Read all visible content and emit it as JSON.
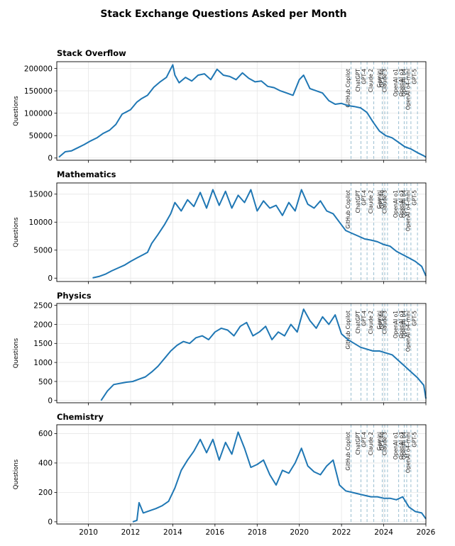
{
  "chart_data": {
    "type": "line",
    "title": "Stack Exchange Questions Asked per Month",
    "xlim": [
      2008.5,
      2026.0
    ],
    "xticks": [
      2010,
      2012,
      2014,
      2016,
      2018,
      2020,
      2022,
      2024,
      2026
    ],
    "xtick_labels": [
      "2010",
      "2012",
      "2014",
      "2016",
      "2018",
      "2020",
      "2022",
      "2024",
      "2026"
    ],
    "events": [
      {
        "label": "GitHub Copilot",
        "x": 2022.45
      },
      {
        "label": "ChatGPT",
        "x": 2022.92
      },
      {
        "label": "GPT-4",
        "x": 2023.21
      },
      {
        "label": "Claude 2",
        "x": 2023.53
      },
      {
        "label": "Gemini",
        "x": 2023.93
      },
      {
        "label": "GPT-4o",
        "x": 2024.05
      },
      {
        "label": "Claude 3",
        "x": 2024.18
      },
      {
        "label": "OpenAI o1",
        "x": 2024.71
      },
      {
        "label": "OpenAI o3",
        "x": 2024.97
      },
      {
        "label": "OpenAI o4",
        "x": 2025.09
      },
      {
        "label": "OpenAI o4-mini",
        "x": 2025.29
      },
      {
        "label": "GPT-5",
        "x": 2025.6
      }
    ],
    "panels": [
      {
        "name": "Stack Overflow",
        "ylabel": "Questions",
        "ylim": [
          -5000,
          215000
        ],
        "yticks": [
          0,
          50000,
          100000,
          150000,
          200000
        ],
        "ytick_labels": [
          "0",
          "50000",
          "100000",
          "150000",
          "200000"
        ],
        "x": [
          2008.6,
          2008.9,
          2009.2,
          2009.5,
          2009.8,
          2010.1,
          2010.4,
          2010.7,
          2011.0,
          2011.3,
          2011.6,
          2011.8,
          2012.0,
          2012.3,
          2012.5,
          2012.8,
          2013.1,
          2013.4,
          2013.7,
          2014.0,
          2014.1,
          2014.3,
          2014.6,
          2014.9,
          2015.2,
          2015.5,
          2015.8,
          2016.1,
          2016.4,
          2016.7,
          2017.0,
          2017.3,
          2017.6,
          2017.9,
          2018.2,
          2018.5,
          2018.8,
          2019.1,
          2019.4,
          2019.7,
          2020.0,
          2020.2,
          2020.5,
          2020.8,
          2021.1,
          2021.4,
          2021.7,
          2022.0,
          2022.3,
          2022.6,
          2022.9,
          2023.2,
          2023.5,
          2023.8,
          2024.1,
          2024.4,
          2024.7,
          2025.0,
          2025.3,
          2025.6,
          2025.9,
          2026.0
        ],
        "y": [
          2000,
          14000,
          16000,
          23000,
          30000,
          38000,
          45000,
          55000,
          62000,
          75000,
          98000,
          103000,
          108000,
          125000,
          132000,
          140000,
          158000,
          170000,
          180000,
          208000,
          185000,
          168000,
          180000,
          172000,
          185000,
          188000,
          175000,
          198000,
          185000,
          182000,
          175000,
          190000,
          178000,
          170000,
          172000,
          160000,
          157000,
          150000,
          145000,
          140000,
          175000,
          185000,
          155000,
          150000,
          145000,
          128000,
          120000,
          122000,
          117000,
          115000,
          112000,
          102000,
          80000,
          60000,
          50000,
          45000,
          35000,
          25000,
          20000,
          12000,
          5000,
          2000
        ]
      },
      {
        "name": "Mathematics",
        "ylabel": "Questions",
        "ylim": [
          -600,
          17000
        ],
        "yticks": [
          0,
          5000,
          10000,
          15000
        ],
        "ytick_labels": [
          "0",
          "5000",
          "10000",
          "15000"
        ],
        "x": [
          2010.2,
          2010.5,
          2010.8,
          2011.1,
          2011.4,
          2011.7,
          2012.0,
          2012.3,
          2012.6,
          2012.8,
          2013.0,
          2013.3,
          2013.6,
          2013.9,
          2014.1,
          2014.4,
          2014.7,
          2015.0,
          2015.3,
          2015.6,
          2015.9,
          2016.2,
          2016.5,
          2016.8,
          2017.1,
          2017.4,
          2017.7,
          2018.0,
          2018.3,
          2018.6,
          2018.9,
          2019.2,
          2019.5,
          2019.8,
          2020.1,
          2020.4,
          2020.7,
          2021.0,
          2021.3,
          2021.6,
          2021.9,
          2022.2,
          2022.5,
          2022.8,
          2023.1,
          2023.4,
          2023.7,
          2024.0,
          2024.3,
          2024.6,
          2024.9,
          2025.2,
          2025.5,
          2025.8,
          2026.0
        ],
        "y": [
          50,
          300,
          700,
          1300,
          1800,
          2300,
          3000,
          3600,
          4200,
          4600,
          6200,
          7800,
          9500,
          11500,
          13500,
          12000,
          14000,
          12800,
          15300,
          12500,
          15800,
          13000,
          15500,
          12500,
          14800,
          13500,
          15800,
          12000,
          13800,
          12500,
          13000,
          11200,
          13500,
          12000,
          15800,
          13200,
          12500,
          13800,
          12000,
          11500,
          10000,
          8500,
          8000,
          7500,
          7000,
          6800,
          6500,
          6000,
          5700,
          4800,
          4200,
          3600,
          3000,
          2100,
          400
        ]
      },
      {
        "name": "Physics",
        "ylabel": "Questions",
        "ylim": [
          -60,
          2550
        ],
        "yticks": [
          0,
          500,
          1000,
          1500,
          2000,
          2500
        ],
        "ytick_labels": [
          "0",
          "500",
          "1000",
          "1500",
          "2000",
          "2500"
        ],
        "x": [
          2010.6,
          2010.9,
          2011.2,
          2011.5,
          2011.8,
          2012.1,
          2012.4,
          2012.7,
          2013.0,
          2013.3,
          2013.6,
          2013.9,
          2014.2,
          2014.5,
          2014.8,
          2015.1,
          2015.4,
          2015.7,
          2016.0,
          2016.3,
          2016.6,
          2016.9,
          2017.2,
          2017.5,
          2017.8,
          2018.1,
          2018.4,
          2018.7,
          2019.0,
          2019.3,
          2019.6,
          2019.9,
          2020.2,
          2020.5,
          2020.8,
          2021.1,
          2021.4,
          2021.7,
          2022.0,
          2022.3,
          2022.6,
          2022.9,
          2023.2,
          2023.5,
          2023.8,
          2024.1,
          2024.4,
          2024.7,
          2025.0,
          2025.3,
          2025.6,
          2025.9,
          2026.0
        ],
        "y": [
          0,
          250,
          420,
          450,
          480,
          500,
          560,
          620,
          750,
          900,
          1100,
          1300,
          1450,
          1550,
          1500,
          1650,
          1700,
          1600,
          1800,
          1900,
          1850,
          1700,
          1950,
          2050,
          1700,
          1800,
          1950,
          1600,
          1800,
          1700,
          2000,
          1800,
          2400,
          2100,
          1900,
          2200,
          2000,
          2250,
          1750,
          1600,
          1500,
          1400,
          1350,
          1300,
          1300,
          1250,
          1200,
          1050,
          900,
          750,
          600,
          400,
          50
        ]
      },
      {
        "name": "Chemistry",
        "ylabel": "Questions",
        "ylim": [
          -15,
          660
        ],
        "yticks": [
          0,
          200,
          400,
          600
        ],
        "ytick_labels": [
          "0",
          "200",
          "400",
          "600"
        ],
        "x": [
          2012.1,
          2012.3,
          2012.4,
          2012.6,
          2012.9,
          2013.2,
          2013.5,
          2013.8,
          2014.1,
          2014.4,
          2014.7,
          2015.0,
          2015.3,
          2015.6,
          2015.9,
          2016.2,
          2016.5,
          2016.8,
          2017.1,
          2017.4,
          2017.7,
          2018.0,
          2018.3,
          2018.6,
          2018.9,
          2019.2,
          2019.5,
          2019.8,
          2020.1,
          2020.4,
          2020.7,
          2021.0,
          2021.3,
          2021.6,
          2021.9,
          2022.2,
          2022.5,
          2022.8,
          2023.1,
          2023.4,
          2023.7,
          2024.0,
          2024.3,
          2024.6,
          2024.9,
          2025.2,
          2025.5,
          2025.8,
          2026.0
        ],
        "y": [
          0,
          10,
          130,
          60,
          75,
          90,
          110,
          140,
          230,
          350,
          420,
          480,
          560,
          470,
          560,
          420,
          540,
          460,
          610,
          500,
          370,
          390,
          420,
          320,
          250,
          350,
          330,
          400,
          500,
          380,
          340,
          320,
          380,
          420,
          250,
          210,
          200,
          190,
          180,
          170,
          170,
          160,
          160,
          150,
          170,
          100,
          70,
          60,
          20
        ]
      }
    ]
  }
}
